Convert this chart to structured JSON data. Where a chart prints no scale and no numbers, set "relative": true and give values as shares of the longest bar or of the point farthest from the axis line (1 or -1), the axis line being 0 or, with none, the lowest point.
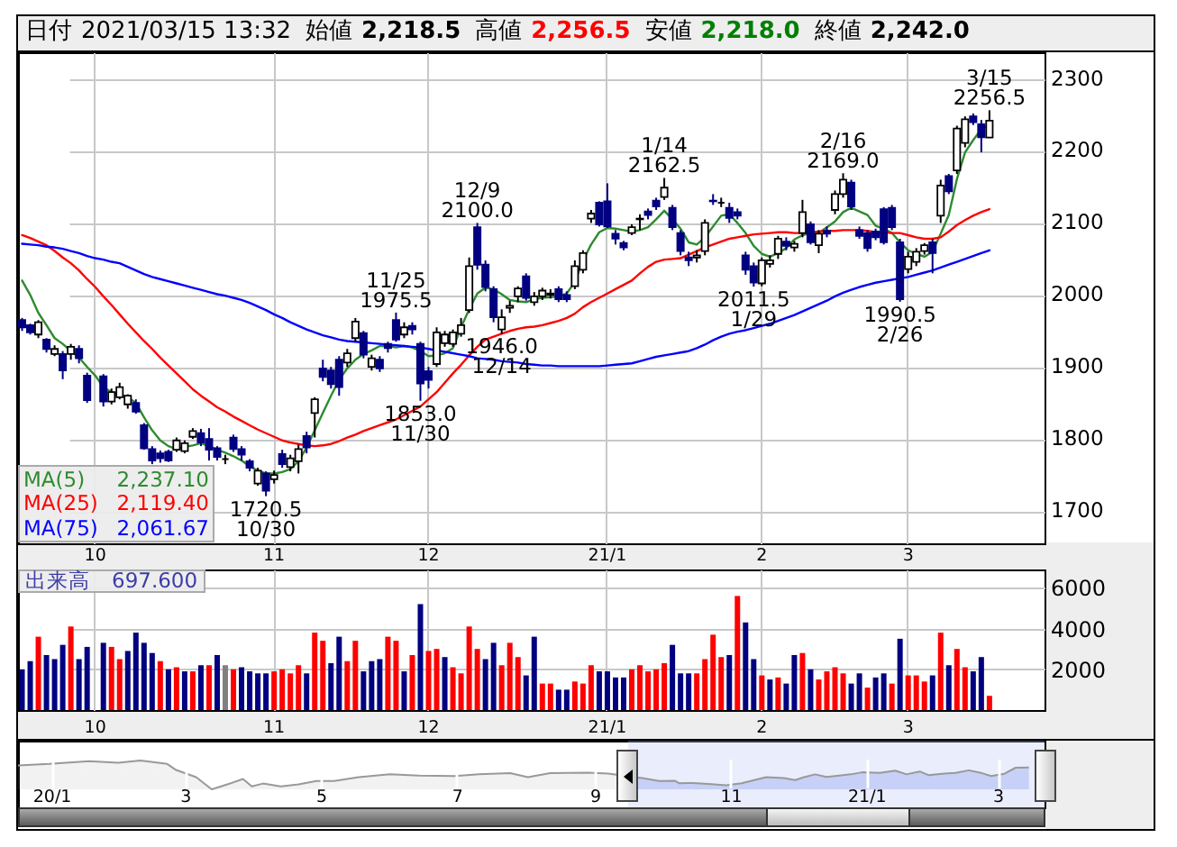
{
  "chart_data": [
    {
      "type": "candlestick",
      "categories": [
        null,
        null,
        null,
        null,
        null,
        null,
        null,
        null,
        null,
        "10",
        null,
        null,
        null,
        null,
        null,
        null,
        null,
        null,
        null,
        null,
        null,
        null,
        null,
        null,
        null,
        null,
        null,
        null,
        null,
        null,
        null,
        "11",
        null,
        null,
        null,
        null,
        null,
        null,
        null,
        null,
        null,
        null,
        null,
        null,
        null,
        null,
        null,
        null,
        null,
        null,
        "12",
        null,
        null,
        null,
        null,
        null,
        null,
        null,
        null,
        null,
        null,
        null,
        null,
        null,
        null,
        null,
        null,
        null,
        null,
        null,
        null,
        null,
        "21/1",
        null,
        null,
        null,
        null,
        null,
        null,
        null,
        null,
        null,
        null,
        null,
        null,
        null,
        null,
        null,
        null,
        null,
        null,
        "2",
        null,
        null,
        null,
        null,
        null,
        null,
        null,
        null,
        null,
        null,
        null,
        null,
        null,
        null,
        null,
        null,
        null,
        "3",
        null,
        null,
        null,
        null,
        null,
        null,
        null,
        null,
        null,
        null
      ],
      "ohlc": [
        [
          1965,
          1968,
          1950,
          1955
        ],
        [
          1958,
          1960,
          1945,
          1948
        ],
        [
          1945,
          1965,
          1940,
          1962
        ],
        [
          1938,
          1940,
          1920,
          1925
        ],
        [
          1918,
          1930,
          1915,
          1925
        ],
        [
          1918,
          1922,
          1883,
          1895
        ],
        [
          1918,
          1932,
          1910,
          1928
        ],
        [
          1925,
          1930,
          1905,
          1912
        ],
        [
          1888,
          1892,
          1850,
          1854
        ],
        null,
        [
          1887,
          1890,
          1845,
          1852
        ],
        [
          1852,
          1870,
          1848,
          1865
        ],
        [
          1858,
          1878,
          1855,
          1872
        ],
        [
          1848,
          1862,
          1842,
          1860
        ],
        [
          1850,
          1855,
          1835,
          1838
        ],
        [
          1819,
          1822,
          1785,
          1787
        ],
        [
          1786,
          1790,
          1765,
          1770
        ],
        [
          1780,
          1784,
          1767,
          1773
        ],
        [
          1782,
          1785,
          1768,
          1770
        ],
        [
          1785,
          1802,
          1782,
          1798
        ],
        [
          1783,
          1798,
          1780,
          1794
        ],
        [
          1803,
          1815,
          1800,
          1811
        ],
        [
          1808,
          1814,
          1790,
          1795
        ],
        [
          1800,
          1815,
          1770,
          1785
        ],
        [
          1787,
          1790,
          1770,
          1775
        ],
        [
          1772,
          1778,
          1765,
          1772
        ],
        [
          1802,
          1806,
          1782,
          1786
        ],
        [
          1786,
          1790,
          1770,
          1778
        ],
        [
          1769,
          1772,
          1755,
          1760
        ],
        [
          1738,
          1760,
          1735,
          1756
        ],
        [
          1752,
          1755,
          1720.5,
          1728
        ],
        [
          1744,
          1756,
          1738,
          1750
        ],
        [
          1779,
          1785,
          1760,
          1765
        ],
        [
          1761,
          1778,
          1755,
          1773
        ],
        [
          1769,
          1792,
          1752,
          1786
        ],
        [
          1804,
          1810,
          1780,
          1788
        ],
        [
          1836,
          1858,
          1802,
          1855
        ],
        [
          1898,
          1910,
          1880,
          1886
        ],
        [
          1895,
          1900,
          1870,
          1876
        ],
        [
          1910,
          1915,
          1860,
          1872
        ],
        [
          1906,
          1925,
          1900,
          1919
        ],
        [
          1940,
          1968,
          1935,
          1963
        ],
        [
          1947,
          1950,
          1912,
          1917
        ],
        [
          1900,
          1917,
          1895,
          1912
        ],
        [
          1910,
          1915,
          1893,
          1898
        ],
        [
          1932,
          1935,
          1920,
          1926
        ],
        [
          1965,
          1975.5,
          1935,
          1938
        ],
        [
          1945,
          1962,
          1940,
          1955
        ],
        [
          1957,
          1962,
          1945,
          1952
        ],
        [
          1932,
          1935,
          1853,
          1877
        ],
        [
          1894,
          1900,
          1870,
          1882
        ],
        [
          1904,
          1955,
          1900,
          1948
        ],
        [
          1933,
          1950,
          1928,
          1945
        ],
        [
          1932,
          1952,
          1928,
          1948
        ],
        [
          1946,
          1968,
          1942,
          1958
        ],
        [
          1979,
          2052,
          1975,
          2040
        ],
        [
          2094,
          2100,
          2035,
          2042
        ],
        [
          2042,
          2048,
          2005,
          2011
        ],
        [
          2008,
          2012,
          1962,
          1969
        ],
        [
          1952,
          1980,
          1946,
          1969
        ],
        [
          1982,
          1992,
          1975,
          1985
        ],
        [
          1998,
          2012,
          1990,
          2009
        ],
        [
          2026,
          2030,
          1992,
          1996
        ],
        [
          1990,
          2004,
          1985,
          1998
        ],
        [
          1998,
          2010,
          1993,
          2006
        ],
        [
          2000,
          2008,
          1995,
          2002
        ],
        [
          2008,
          2012,
          1990,
          1994
        ],
        [
          2000,
          2005,
          1990,
          1994
        ],
        [
          2012,
          2048,
          2008,
          2040
        ],
        [
          2035,
          2062,
          2030,
          2058
        ],
        [
          2106,
          2118,
          2100,
          2113
        ],
        [
          2128,
          2130,
          2095,
          2098
        ],
        [
          2130,
          2155,
          2093,
          2095
        ],
        [
          2085,
          2090,
          2070,
          2078
        ],
        [
          2072,
          2075,
          2062,
          2066
        ],
        [
          2086,
          2098,
          2083,
          2094
        ],
        [
          2105,
          2112,
          2090,
          2106
        ],
        [
          2116,
          2120,
          2105,
          2111
        ],
        [
          2131,
          2135,
          2118,
          2123
        ],
        [
          2136,
          2162.5,
          2132,
          2149
        ],
        [
          2121,
          2125,
          2090,
          2094
        ],
        [
          2086,
          2090,
          2055,
          2061
        ],
        [
          2052,
          2060,
          2040,
          2048
        ],
        [
          2052,
          2062,
          2045,
          2055
        ],
        [
          2061,
          2105,
          2055,
          2100
        ],
        [
          2131,
          2140,
          2125,
          2130
        ],
        [
          2128,
          2135,
          2122,
          2128
        ],
        [
          2121,
          2128,
          2100,
          2107
        ],
        [
          2115,
          2120,
          2105,
          2110
        ],
        [
          2055,
          2060,
          2028,
          2035
        ],
        [
          2040,
          2045,
          2011.5,
          2017
        ],
        [
          2016,
          2052,
          2012,
          2048
        ],
        [
          2043,
          2055,
          2038,
          2048
        ],
        [
          2057,
          2082,
          2050,
          2078
        ],
        [
          2074,
          2080,
          2062,
          2068
        ],
        [
          2066,
          2075,
          2060,
          2071
        ],
        [
          2086,
          2132,
          2080,
          2115
        ],
        [
          2098,
          2102,
          2070,
          2073
        ],
        [
          2069,
          2090,
          2058,
          2085
        ],
        [
          2089,
          2095,
          2080,
          2085
        ],
        [
          2118,
          2145,
          2112,
          2140
        ],
        [
          2140,
          2169,
          2135,
          2160
        ],
        [
          2156,
          2160,
          2118,
          2123
        ],
        [
          2090,
          2095,
          2078,
          2082
        ],
        [
          2086,
          2090,
          2060,
          2065
        ],
        [
          2088,
          2092,
          2076,
          2080
        ],
        [
          2119,
          2122,
          2070,
          2073
        ],
        [
          2121,
          2125,
          2090,
          2094
        ],
        [
          2073,
          2078,
          1990.5,
          1994
        ],
        [
          2036,
          2060,
          2030,
          2053
        ],
        [
          2046,
          2065,
          2040,
          2060
        ],
        [
          2061,
          2072,
          2056,
          2069
        ],
        [
          2073,
          2078,
          2030,
          2058
        ],
        [
          2110,
          2160,
          2100,
          2152
        ],
        [
          2165,
          2168,
          2140,
          2144
        ],
        [
          2173,
          2235,
          2168,
          2231
        ],
        [
          2211,
          2248,
          2205,
          2244
        ],
        [
          2248,
          2252,
          2236,
          2240
        ],
        [
          2237,
          2243,
          2198,
          2219
        ],
        [
          2218.5,
          2256.5,
          2218.0,
          2242.0
        ]
      ],
      "colors": [
        "#000080",
        "#000080",
        "#ffffff",
        "#000080",
        "#ffffff",
        "#000080",
        "#ffffff",
        "#000080",
        "#000080",
        null,
        "#000080",
        "#ffffff",
        "#ffffff",
        "#ffffff",
        "#000080",
        "#000080",
        "#000080",
        "#000080",
        "#000080",
        "#ffffff",
        "#ffffff",
        "#ffffff",
        "#000080",
        "#000080",
        "#000080",
        "#000000",
        "#000080",
        "#000080",
        "#000080",
        "#ffffff",
        "#000080",
        "#ffffff",
        "#000080",
        "#ffffff",
        "#ffffff",
        "#000080",
        "#ffffff",
        "#000080",
        "#000080",
        "#000080",
        "#ffffff",
        "#ffffff",
        "#000080",
        "#ffffff",
        "#000080",
        "#000080",
        "#000080",
        "#ffffff",
        "#000080",
        "#000080",
        "#000080",
        "#ffffff",
        "#ffffff",
        "#ffffff",
        "#ffffff",
        "#ffffff",
        "#000080",
        "#000080",
        "#000080",
        "#ffffff",
        "#ffffff",
        "#ffffff",
        "#000080",
        "#ffffff",
        "#ffffff",
        "#ffffff",
        "#000080",
        "#000080",
        "#ffffff",
        "#ffffff",
        "#ffffff",
        "#000080",
        "#000080",
        "#000080",
        "#000080",
        "#ffffff",
        "#ffffff",
        "#000080",
        "#000080",
        "#ffffff",
        "#000080",
        "#000080",
        "#000080",
        "#ffffff",
        "#ffffff",
        "#000080",
        "#000000",
        "#000080",
        "#000080",
        "#000080",
        "#000080",
        "#ffffff",
        "#ffffff",
        "#ffffff",
        "#000080",
        "#ffffff",
        "#ffffff",
        "#000080",
        "#ffffff",
        "#000080",
        "#ffffff",
        "#ffffff",
        "#000080",
        "#000080",
        "#000080",
        "#000080",
        "#000080",
        "#000080",
        "#000080",
        "#ffffff",
        "#ffffff",
        "#ffffff",
        "#000080",
        "#ffffff",
        "#000080",
        "#ffffff",
        "#ffffff",
        "#000080",
        "#000080",
        "#ffffff"
      ],
      "series": [
        {
          "name": "MA(5)",
          "type": "line",
          "color": "#2e8b2e",
          "values": [
            2020,
            2000,
            1975,
            1958,
            1940,
            1932,
            1922,
            1913,
            1900,
            1888,
            1872,
            1865,
            1861,
            1858,
            1850,
            1830,
            1812,
            1798,
            1790,
            1786,
            1789,
            1791,
            1794,
            1790,
            1785,
            1781,
            1776,
            1770,
            1762,
            1756,
            1752,
            1752,
            1754,
            1758,
            1769,
            1788,
            1812,
            1836,
            1860,
            1882,
            1898,
            1910,
            1918,
            1923,
            1929,
            1929,
            1927,
            1929,
            1927,
            1922,
            1915,
            1916,
            1919,
            1926,
            1955,
            1980,
            2002,
            2010,
            2008,
            2001,
            1993,
            1991,
            1990,
            1994,
            1996,
            1997,
            1998,
            2002,
            2018,
            2048,
            2070,
            2087,
            2093,
            2092,
            2090,
            2088,
            2090,
            2094,
            2105,
            2117,
            2105,
            2092,
            2073,
            2070,
            2080,
            2095,
            2110,
            2112,
            2100,
            2086,
            2068,
            2057,
            2053,
            2058,
            2065,
            2077,
            2083,
            2086,
            2086,
            2094,
            2102,
            2115,
            2121,
            2116,
            2111,
            2096,
            2092,
            2086,
            2073,
            2062,
            2057,
            2053,
            2060,
            2085,
            2111,
            2161,
            2198,
            2215,
            2230,
            2237
          ]
        },
        {
          "name": "MA(25)",
          "type": "line",
          "color": "#ff0000",
          "values": [
            2083,
            2079,
            2074,
            2069,
            2061,
            2052,
            2044,
            2034,
            2022,
            2011,
            1998,
            1986,
            1973,
            1960,
            1948,
            1936,
            1925,
            1913,
            1902,
            1891,
            1880,
            1869,
            1860,
            1852,
            1844,
            1838,
            1831,
            1825,
            1819,
            1813,
            1808,
            1803,
            1798,
            1795,
            1793,
            1791,
            1790,
            1791,
            1793,
            1797,
            1802,
            1806,
            1811,
            1815,
            1819,
            1823,
            1827,
            1833,
            1839,
            1845,
            1855,
            1865,
            1878,
            1891,
            1903,
            1916,
            1928,
            1938,
            1942,
            1946,
            1950,
            1953,
            1955,
            1956,
            1958,
            1961,
            1964,
            1968,
            1974,
            1983,
            1990,
            1996,
            2002,
            2008,
            2014,
            2020,
            2030,
            2039,
            2046,
            2049,
            2050,
            2051,
            2056,
            2061,
            2066,
            2070,
            2074,
            2078,
            2080,
            2082,
            2084,
            2085,
            2086,
            2087,
            2087,
            2086,
            2086,
            2087,
            2088,
            2089,
            2089,
            2090,
            2090,
            2090,
            2089,
            2087,
            2087,
            2086,
            2086,
            2083,
            2080,
            2078,
            2078,
            2080,
            2088,
            2097,
            2104,
            2110,
            2115,
            2119
          ]
        },
        {
          "name": "MA(75)",
          "type": "line",
          "color": "#0000ff",
          "values": [
            2071,
            2070,
            2069,
            2067,
            2066,
            2064,
            2061,
            2058,
            2054,
            2051,
            2049,
            2046,
            2044,
            2039,
            2034,
            2029,
            2025,
            2022,
            2019,
            2016,
            2013,
            2010,
            2007,
            2004,
            2001,
            1999,
            1996,
            1993,
            1989,
            1984,
            1979,
            1973,
            1968,
            1962,
            1957,
            1952,
            1948,
            1944,
            1941,
            1938,
            1936,
            1935,
            1934,
            1933,
            1932,
            1931,
            1930,
            1929,
            1928,
            1927,
            1925,
            1923,
            1921,
            1919,
            1917,
            1915,
            1912,
            1911,
            1910,
            1908,
            1907,
            1906,
            1904,
            1903,
            1902,
            1902,
            1901,
            1901,
            1901,
            1901,
            1901,
            1901,
            1902,
            1903,
            1904,
            1905,
            1908,
            1911,
            1914,
            1916,
            1918,
            1920,
            1922,
            1926,
            1931,
            1937,
            1942,
            1946,
            1949,
            1951,
            1954,
            1957,
            1960,
            1964,
            1968,
            1972,
            1977,
            1982,
            1987,
            1992,
            1998,
            2003,
            2007,
            2011,
            2014,
            2017,
            2019,
            2021,
            2023,
            2025,
            2028,
            2031,
            2034,
            2038,
            2042,
            2046,
            2050,
            2054,
            2058,
            2062
          ]
        }
      ],
      "ylim": [
        1655,
        2337
      ],
      "yticks": [
        1700,
        1800,
        1900,
        2000,
        2100,
        2200,
        2300
      ],
      "grid": true,
      "legend": "bottom left",
      "annotations": [
        "日付",
        "2021/03/15 13:32",
        "始値",
        "2,218.5",
        "高値",
        "2,256.5",
        "安値",
        "2,218.0",
        "終値",
        "2,242.0",
        "2,237.10",
        "2,119.40",
        "2,061.67",
        {
          "text": "1720.5\n10/30",
          "y": 1720.5
        },
        {
          "text": "11/25\n1975.5",
          "y": 1975.5
        },
        {
          "text": "1853.0\n11/30",
          "y": 1853
        },
        {
          "text": "12/9\n2100.0",
          "y": 2100
        },
        {
          "text": "1946.0\n12/14",
          "y": 1946
        },
        {
          "text": "1/14\n2162.5",
          "y": 2162.5
        },
        {
          "text": "2011.5\n1/29",
          "y": 2011.5
        },
        {
          "text": "2/16\n2169.0",
          "y": 2169
        },
        {
          "text": "1990.5\n2/26",
          "y": 1990.5
        },
        {
          "text": "3/15\n2256.5",
          "y": 2256.5
        }
      ]
    },
    {
      "type": "bar",
      "categories": [
        null,
        null,
        null,
        null,
        null,
        null,
        null,
        null,
        null,
        "10",
        null,
        null,
        null,
        null,
        null,
        null,
        null,
        null,
        null,
        null,
        null,
        null,
        null,
        null,
        null,
        null,
        null,
        null,
        null,
        null,
        null,
        "11",
        null,
        null,
        null,
        null,
        null,
        null,
        null,
        null,
        null,
        null,
        null,
        null,
        null,
        null,
        null,
        null,
        null,
        null,
        "12",
        null,
        null,
        null,
        null,
        null,
        null,
        null,
        null,
        null,
        null,
        null,
        null,
        null,
        null,
        null,
        null,
        null,
        null,
        null,
        null,
        null,
        "21/1",
        null,
        null,
        null,
        null,
        null,
        null,
        null,
        null,
        null,
        null,
        null,
        null,
        null,
        null,
        null,
        null,
        null,
        null,
        "2",
        null,
        null,
        null,
        null,
        null,
        null,
        null,
        null,
        null,
        null,
        null,
        null,
        null,
        null,
        null,
        null,
        null,
        "3",
        null,
        null,
        null,
        null,
        null,
        null,
        null,
        null,
        null,
        null
      ],
      "values": [
        2000,
        2400,
        3600,
        2700,
        2500,
        3200,
        4100,
        2500,
        3100,
        null,
        3300,
        3100,
        2500,
        2900,
        3800,
        3300,
        2800,
        2400,
        2000,
        2100,
        1900,
        1900,
        2200,
        2200,
        2700,
        2200,
        2000,
        2100,
        1900,
        1800,
        1800,
        1900,
        2000,
        1800,
        2200,
        1800,
        3800,
        3400,
        2300,
        3600,
        2400,
        3400,
        1900,
        2400,
        2500,
        3600,
        3400,
        1900,
        2700,
        5200,
        2900,
        3000,
        2600,
        2100,
        1800,
        4100,
        3000,
        2500,
        3300,
        2200,
        3300,
        2600,
        1700,
        3600,
        1300,
        1300,
        1000,
        1000,
        1400,
        1300,
        2200,
        1900,
        1900,
        1600,
        1600,
        2000,
        2200,
        1900,
        2000,
        2300,
        3200,
        1800,
        1800,
        1800,
        2500,
        3700,
        2600,
        2700,
        5600,
        4300,
        2500,
        1700,
        1500,
        1600,
        1300,
        2700,
        2800,
        2000,
        1500,
        1900,
        2100,
        1800,
        1300,
        1800,
        1100,
        1600,
        1800,
        1300,
        3500,
        1700,
        1700,
        1400,
        1700,
        3800,
        2200,
        3000,
        2100,
        1900,
        2600,
        697.6
      ],
      "colors": [
        "#000080",
        "#000080",
        "#ff0000",
        "#000080",
        "#000080",
        "#000080",
        "#ff0000",
        "#000080",
        "#000080",
        null,
        "#000080",
        "#ff0000",
        "#ff0000",
        "#000080",
        "#000080",
        "#000080",
        "#000080",
        "#ff0000",
        "#000080",
        "#ff0000",
        "#000080",
        "#ff0000",
        "#000080",
        "#ff0000",
        "#000080",
        "#808080",
        "#ff0000",
        "#000080",
        "#000080",
        "#000080",
        "#000080",
        "#ff0000",
        "#ff0000",
        "#ff0000",
        "#ff0000",
        "#000080",
        "#ff0000",
        "#ff0000",
        "#000080",
        "#000080",
        "#ff0000",
        "#ff0000",
        "#000080",
        "#000080",
        "#000080",
        "#ff0000",
        "#ff0000",
        "#000080",
        "#ff0000",
        "#000080",
        "#ff0000",
        "#ff0000",
        "#000080",
        "#ff0000",
        "#ff0000",
        "#ff0000",
        "#ff0000",
        "#000080",
        "#000080",
        "#ff0000",
        "#ff0000",
        "#ff0000",
        "#000080",
        "#000080",
        "#ff0000",
        "#ff0000",
        "#000080",
        "#000080",
        "#ff0000",
        "#ff0000",
        "#ff0000",
        "#000080",
        "#000080",
        "#000080",
        "#000080",
        "#ff0000",
        "#ff0000",
        "#ff0000",
        "#ff0000",
        "#ff0000",
        "#000080",
        "#000080",
        "#000080",
        "#ff0000",
        "#ff0000",
        "#ff0000",
        "#ff0000",
        "#000080",
        "#ff0000",
        "#000080",
        "#000080",
        "#ff0000",
        "#000080",
        "#ff0000",
        "#000080",
        "#000080",
        "#ff0000",
        "#000080",
        "#ff0000",
        "#ff0000",
        "#ff0000",
        "#ff0000",
        "#000080",
        "#000080",
        "#ff0000",
        "#000080",
        "#000080",
        "#ff0000",
        "#000080",
        "#ff0000",
        "#ff0000",
        "#ff0000",
        "#000080",
        "#ff0000",
        "#000080",
        "#ff0000",
        "#ff0000",
        "#000080",
        "#000080",
        "#ff0000"
      ],
      "ylim": [
        0,
        6900
      ],
      "yticks": [
        2000,
        4000,
        6000
      ],
      "grid": true,
      "title": "出来高",
      "annotations": [
        "697.600"
      ]
    },
    {
      "type": "area",
      "relative": true,
      "x": [
        "2019-12-17",
        "2019-12-31",
        "2020-01-18",
        "2020-01-31",
        "2020-02-10",
        "2020-02-22",
        "2020-02-26",
        "2020-03-06",
        "2020-03-13",
        "2020-03-20",
        "2020-03-27",
        "2020-03-31",
        "2020-04-05",
        "2020-04-13",
        "2020-04-21",
        "2020-04-29",
        "2020-05-07",
        "2020-05-18",
        "2020-06-01",
        "2020-06-14",
        "2020-06-30",
        "2020-07-11",
        "2020-07-25",
        "2020-08-02",
        "2020-08-12",
        "2020-08-29",
        "2020-09-07",
        "2020-09-23",
        "2020-09-30",
        "2020-10-07",
        "2020-10-09",
        "2020-10-15",
        "2020-10-22",
        "2020-10-30",
        "2020-11-06",
        "2020-11-10",
        "2020-11-17",
        "2020-11-25",
        "2020-11-30",
        "2020-12-04",
        "2020-12-09",
        "2020-12-14",
        "2020-12-18",
        "2020-12-25",
        "2020-12-30",
        "2021-01-07",
        "2021-01-14",
        "2021-01-19",
        "2021-01-25",
        "2021-01-29",
        "2021-02-05",
        "2021-02-10",
        "2021-02-16",
        "2021-02-22",
        "2021-02-26",
        "2021-03-04",
        "2021-03-09",
        "2021-03-15"
      ],
      "series": [
        {
          "color": "#999999",
          "values": [
            0.83,
            0.88,
            0.98,
            0.92,
            1,
            0.88,
            0.67,
            0.42,
            0,
            0.17,
            0.36,
            0.1,
            0.2,
            0.1,
            0.17,
            0.29,
            0.29,
            0.42,
            0.52,
            0.48,
            0.46,
            0.52,
            0.56,
            0.42,
            0.56,
            0.58,
            0.55,
            0.38,
            0.29,
            0.3,
            0.21,
            0.22,
            0.19,
            0.14,
            0.21,
            0.29,
            0.42,
            0.39,
            0.32,
            0.42,
            0.52,
            0.43,
            0.46,
            0.52,
            0.59,
            0.57,
            0.65,
            0.52,
            0.62,
            0.49,
            0.55,
            0.57,
            0.66,
            0.56,
            0.46,
            0.54,
            0.75,
            0.76
          ]
        }
      ],
      "xlim": [
        "2019-12-17",
        "2021-03-22"
      ],
      "xticks": [
        {
          "value": "2020-01-01",
          "label": "20/1"
        },
        {
          "value": "2020-03-01",
          "label": "3"
        },
        {
          "value": "2020-05-01",
          "label": "5"
        },
        {
          "value": "2020-07-01",
          "label": "7"
        },
        {
          "value": "2020-09-01",
          "label": "9"
        },
        {
          "value": "2020-11-01",
          "label": "11"
        },
        {
          "value": "2021-01-01",
          "label": "21/1"
        },
        {
          "value": "2021-03-01",
          "label": "3"
        }
      ],
      "grid": "x",
      "bands": [
        {
          "axis": "x",
          "from": "2020-09-16",
          "to": "2021-03-22",
          "color": "#b8c4f4"
        }
      ]
    }
  ]
}
